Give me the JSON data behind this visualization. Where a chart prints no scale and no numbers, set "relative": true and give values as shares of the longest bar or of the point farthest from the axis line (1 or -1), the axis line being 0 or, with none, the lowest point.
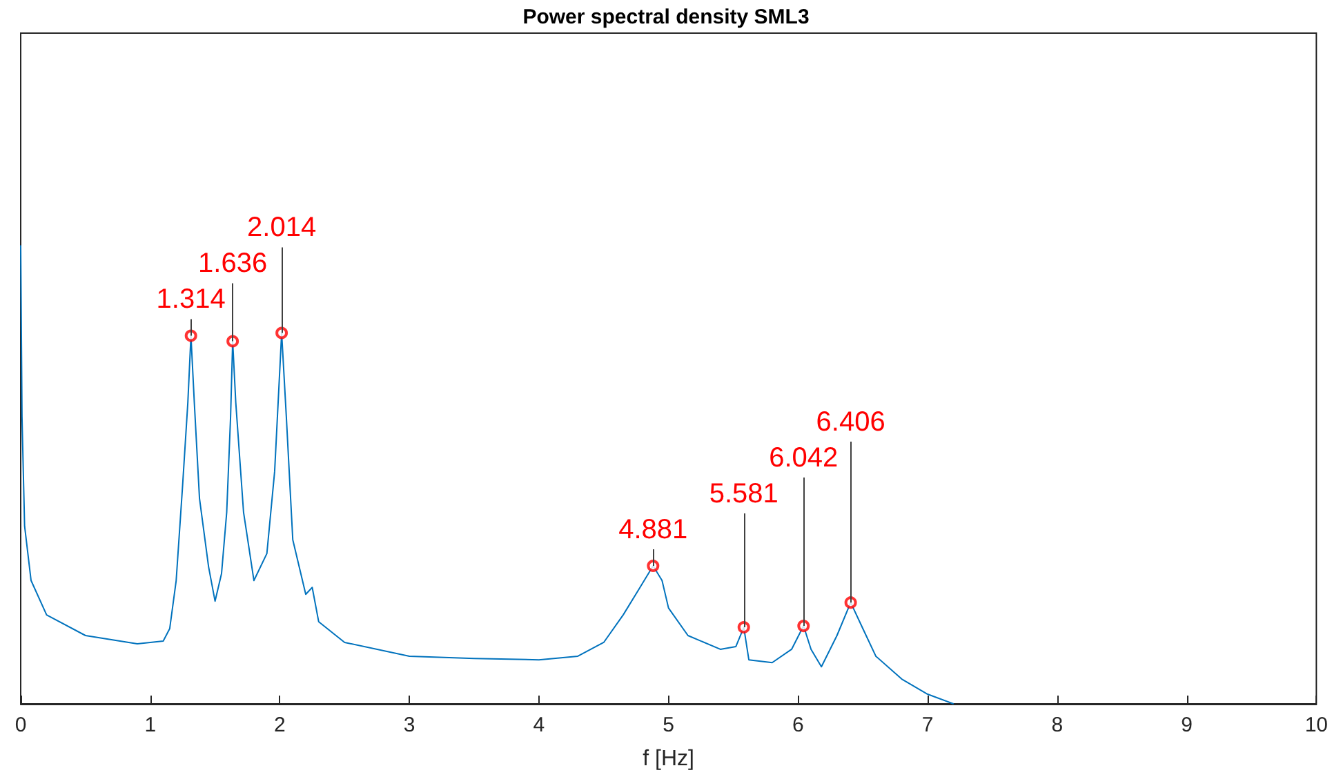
{
  "chart_data": {
    "type": "line",
    "title": "Power spectral density SML3",
    "xlabel": "f [Hz]",
    "relative": true,
    "xlim": [
      0,
      10
    ],
    "xticks": [
      0,
      1,
      2,
      3,
      4,
      5,
      6,
      7,
      8,
      9,
      10
    ],
    "tick_labels": "x",
    "grid": false,
    "series": [
      {
        "color": "#0072bd",
        "marker": "none",
        "x": [
          0,
          0.01,
          0.03,
          0.08,
          0.2,
          0.5,
          0.9,
          1.1,
          1.15,
          1.2,
          1.25,
          1.29,
          1.314,
          1.34,
          1.38,
          1.45,
          1.5,
          1.55,
          1.59,
          1.62,
          1.636,
          1.66,
          1.72,
          1.8,
          1.9,
          1.96,
          2.014,
          2.05,
          2.1,
          2.2,
          2.25,
          2.3,
          2.5,
          3.0,
          3.5,
          4.0,
          4.3,
          4.5,
          4.65,
          4.78,
          4.881,
          4.95,
          5.0,
          5.15,
          5.4,
          5.52,
          5.581,
          5.62,
          5.8,
          5.95,
          6.042,
          6.1,
          6.18,
          6.3,
          6.406,
          6.5,
          6.6,
          6.8,
          7.0,
          7.2
        ],
        "values": [
          1.0,
          0.627,
          0.388,
          0.269,
          0.194,
          0.149,
          0.131,
          0.137,
          0.164,
          0.269,
          0.478,
          0.657,
          0.803,
          0.657,
          0.448,
          0.299,
          0.224,
          0.284,
          0.418,
          0.627,
          0.791,
          0.657,
          0.418,
          0.269,
          0.328,
          0.507,
          0.809,
          0.627,
          0.358,
          0.239,
          0.254,
          0.179,
          0.134,
          0.104,
          0.099,
          0.096,
          0.104,
          0.134,
          0.194,
          0.254,
          0.301,
          0.269,
          0.209,
          0.149,
          0.119,
          0.125,
          0.167,
          0.096,
          0.09,
          0.119,
          0.17,
          0.119,
          0.081,
          0.149,
          0.221,
          0.164,
          0.104,
          0.054,
          0.021,
          0
        ]
      },
      {
        "type": "scatter",
        "color": "#ff0000",
        "marker": "circle",
        "x": [
          1.314,
          1.636,
          2.014,
          4.881,
          5.581,
          6.042,
          6.406
        ],
        "values": [
          0.803,
          0.791,
          0.809,
          0.301,
          0.167,
          0.17,
          0.221
        ]
      }
    ],
    "annotations": [
      {
        "text": "1.314",
        "x": 1.314,
        "y": 0.803
      },
      {
        "text": "1.636",
        "x": 1.636,
        "y": 0.791
      },
      {
        "text": "2.014",
        "x": 2.014,
        "y": 0.809
      },
      {
        "text": "4.881",
        "x": 4.881,
        "y": 0.301
      },
      {
        "text": "5.581",
        "x": 5.581,
        "y": 0.167
      },
      {
        "text": "6.042",
        "x": 6.042,
        "y": 0.17
      },
      {
        "text": "6.406",
        "x": 6.406,
        "y": 0.221
      }
    ]
  }
}
